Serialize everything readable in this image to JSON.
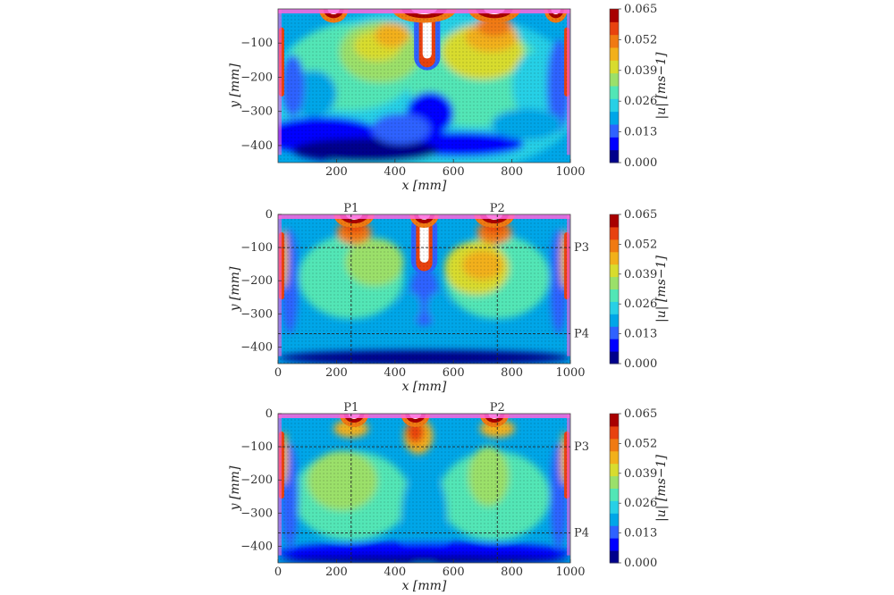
{
  "colors": {
    "levels": [
      "#00008b",
      "#0000ff",
      "#2f62ff",
      "#00a6e8",
      "#28d0e6",
      "#52e6b6",
      "#9be06a",
      "#d8dc2e",
      "#f2b01a",
      "#f07a12",
      "#e8420f",
      "#a80000"
    ],
    "pink": "#ff66dd"
  },
  "chart_data": [
    {
      "type": "heatmap",
      "panel": 1,
      "x_axis": {
        "label": "x [mm]",
        "range": [
          0,
          1000
        ],
        "ticks": [
          "200",
          "400",
          "600",
          "800",
          "1000"
        ]
      },
      "y_axis": {
        "label": "y [mm]",
        "range": [
          -450,
          0
        ],
        "ticks": [
          "−100",
          "−200",
          "−300",
          "−400"
        ]
      },
      "colorbar": {
        "label": "|u| [ms−1]",
        "range": [
          0,
          0.065
        ],
        "ticks": [
          "0.065",
          "0.052",
          "0.039",
          "0.026",
          "0.013",
          "0.000"
        ]
      },
      "points": [],
      "lines": []
    },
    {
      "type": "heatmap",
      "panel": 2,
      "x_axis": {
        "label": "x [mm]",
        "range": [
          0,
          1000
        ],
        "ticks": [
          "0",
          "200",
          "400",
          "600",
          "800",
          "1000"
        ]
      },
      "y_axis": {
        "label": "y [mm]",
        "range": [
          -450,
          0
        ],
        "ticks": [
          "0",
          "−100",
          "−200",
          "−300",
          "−400"
        ]
      },
      "colorbar": {
        "label": "|u| [ms−1]",
        "range": [
          0,
          0.065
        ],
        "ticks": [
          "0.065",
          "0.052",
          "0.039",
          "0.026",
          "0.013",
          "0.000"
        ]
      },
      "points": [
        {
          "label": "P1",
          "x": 250
        },
        {
          "label": "P2",
          "x": 750
        },
        {
          "label": "P3",
          "y": -100
        },
        {
          "label": "P4",
          "y": -360
        }
      ]
    },
    {
      "type": "heatmap",
      "panel": 3,
      "x_axis": {
        "label": "x [mm]",
        "range": [
          0,
          1000
        ],
        "ticks": [
          "0",
          "200",
          "400",
          "600",
          "800",
          "1000"
        ]
      },
      "y_axis": {
        "label": "y [mm]",
        "range": [
          -450,
          0
        ],
        "ticks": [
          "0",
          "−100",
          "−200",
          "−300",
          "−400"
        ]
      },
      "colorbar": {
        "label": "|u| [ms−1]",
        "range": [
          0,
          0.065
        ],
        "ticks": [
          "0.065",
          "0.052",
          "0.039",
          "0.026",
          "0.013",
          "0.000"
        ]
      },
      "points": [
        {
          "label": "P1",
          "x": 250
        },
        {
          "label": "P2",
          "x": 750
        },
        {
          "label": "P3",
          "y": -100
        },
        {
          "label": "P4",
          "y": -360
        }
      ]
    }
  ]
}
